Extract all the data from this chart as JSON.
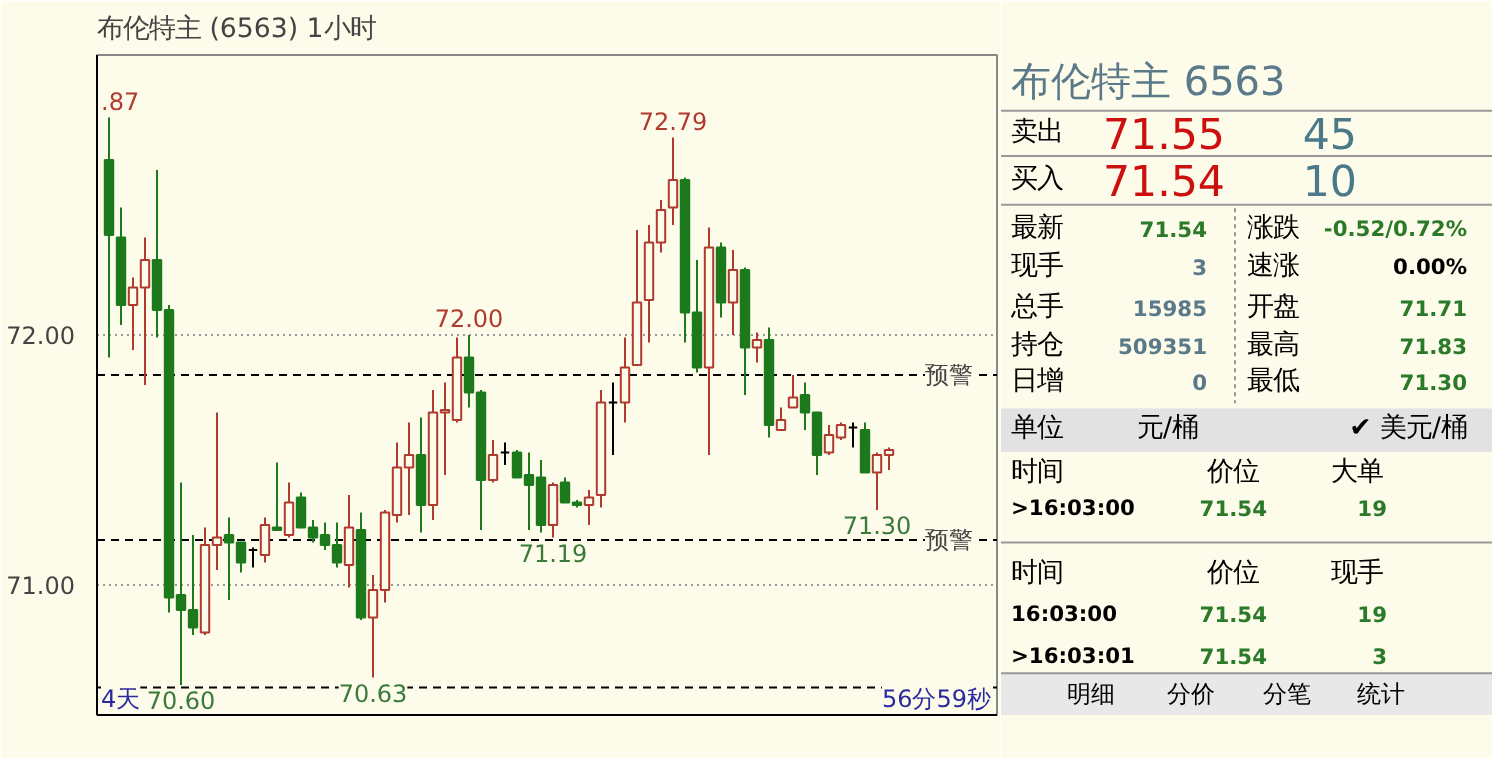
{
  "chart_data": [
    {
      "type": "candlestick",
      "title": "布伦特主 (6563)  1小时",
      "categories": [
        null,
        null,
        null,
        null,
        null,
        null,
        null,
        null,
        null,
        null,
        null,
        null,
        null,
        null,
        null,
        null,
        null,
        null,
        null,
        null,
        null,
        null,
        null,
        null,
        null,
        null,
        null,
        null,
        null,
        null,
        null,
        null,
        null,
        null,
        null,
        null,
        null,
        null,
        null,
        null,
        null,
        null,
        null,
        null,
        null,
        null,
        null,
        null,
        null,
        null,
        null,
        null,
        null,
        null,
        null,
        null,
        null,
        null,
        null,
        null,
        null,
        null,
        null,
        null,
        null,
        null
      ],
      "ohlc": [
        [
          72.7,
          72.87,
          71.91,
          72.4
        ],
        [
          72.39,
          72.51,
          72.04,
          72.12
        ],
        [
          72.12,
          72.23,
          71.94,
          72.19
        ],
        [
          72.19,
          72.39,
          71.8,
          72.3
        ],
        [
          72.3,
          72.66,
          71.99,
          72.1
        ],
        [
          72.1,
          72.12,
          70.89,
          70.95
        ],
        [
          70.96,
          71.41,
          70.6,
          70.9
        ],
        [
          70.9,
          71.2,
          70.8,
          70.83
        ],
        [
          70.81,
          71.23,
          70.8,
          71.16
        ],
        [
          71.16,
          71.69,
          71.06,
          71.19
        ],
        [
          71.2,
          71.27,
          70.94,
          71.17
        ],
        [
          71.17,
          71.17,
          71.05,
          71.09
        ],
        [
          71.14,
          71.15,
          71.07,
          71.14
        ],
        [
          71.12,
          71.27,
          71.09,
          71.24
        ],
        [
          71.23,
          71.49,
          71.22,
          71.22
        ],
        [
          71.2,
          71.41,
          71.19,
          71.33
        ],
        [
          71.35,
          71.37,
          71.23,
          71.23
        ],
        [
          71.23,
          71.26,
          71.17,
          71.19
        ],
        [
          71.2,
          71.25,
          71.14,
          71.16
        ],
        [
          71.16,
          71.25,
          71.07,
          71.09
        ],
        [
          71.08,
          71.36,
          70.99,
          71.23
        ],
        [
          71.22,
          71.29,
          70.86,
          70.87
        ],
        [
          70.87,
          71.04,
          70.63,
          70.98
        ],
        [
          70.98,
          71.3,
          70.93,
          71.29
        ],
        [
          71.28,
          71.57,
          71.25,
          71.47
        ],
        [
          71.47,
          71.65,
          71.28,
          71.52
        ],
        [
          71.52,
          71.67,
          71.21,
          71.32
        ],
        [
          71.32,
          71.78,
          71.26,
          71.69
        ],
        [
          71.69,
          71.81,
          71.44,
          71.7
        ],
        [
          71.66,
          71.99,
          71.65,
          71.91
        ],
        [
          71.91,
          72.0,
          71.71,
          71.77
        ],
        [
          71.77,
          71.78,
          71.22,
          71.42
        ],
        [
          71.42,
          71.58,
          71.41,
          71.52
        ],
        [
          71.53,
          71.57,
          71.48,
          71.53
        ],
        [
          71.53,
          71.54,
          71.43,
          71.43
        ],
        [
          71.44,
          71.53,
          71.22,
          71.4
        ],
        [
          71.43,
          71.5,
          71.21,
          71.24
        ],
        [
          71.24,
          71.41,
          71.19,
          71.4
        ],
        [
          71.41,
          71.43,
          71.33,
          71.33
        ],
        [
          71.33,
          71.34,
          71.31,
          71.32
        ],
        [
          71.32,
          71.38,
          71.24,
          71.35
        ],
        [
          71.36,
          71.78,
          71.31,
          71.73
        ],
        [
          71.73,
          71.81,
          71.52,
          71.73
        ],
        [
          71.73,
          71.99,
          71.65,
          71.87
        ],
        [
          71.88,
          72.42,
          71.88,
          72.13
        ],
        [
          72.14,
          72.44,
          71.97,
          72.37
        ],
        [
          72.37,
          72.54,
          72.33,
          72.5
        ],
        [
          72.51,
          72.79,
          72.44,
          72.62
        ],
        [
          72.62,
          72.63,
          71.97,
          72.09
        ],
        [
          72.09,
          72.3,
          71.85,
          71.87
        ],
        [
          71.87,
          72.43,
          71.52,
          72.35
        ],
        [
          72.35,
          72.37,
          72.07,
          72.13
        ],
        [
          72.13,
          72.34,
          72.0,
          72.26
        ],
        [
          72.26,
          72.27,
          71.76,
          71.95
        ],
        [
          71.95,
          72.01,
          71.89,
          71.98
        ],
        [
          71.98,
          72.03,
          71.59,
          71.64
        ],
        [
          71.62,
          71.71,
          71.62,
          71.66
        ],
        [
          71.71,
          71.84,
          71.71,
          71.75
        ],
        [
          71.76,
          71.81,
          71.62,
          71.69
        ],
        [
          71.69,
          71.69,
          71.44,
          71.52
        ],
        [
          71.53,
          71.64,
          71.52,
          71.6
        ],
        [
          71.59,
          71.65,
          71.58,
          71.64
        ],
        [
          71.63,
          71.65,
          71.55,
          71.63
        ],
        [
          71.62,
          71.65,
          71.45,
          71.45
        ],
        [
          71.45,
          71.53,
          71.3,
          71.52
        ],
        [
          71.52,
          71.55,
          71.46,
          71.54
        ]
      ],
      "ylim": [
        70.48,
        73.12
      ],
      "yticks": [
        {
          "value": 71,
          "label": "71.00"
        },
        {
          "value": 72,
          "label": "72.00"
        }
      ],
      "grid": "y",
      "tick_labels": "y",
      "ref_lines": [
        {
          "axis": "y",
          "value": 71.84,
          "label": "预警",
          "line_style": "dashed"
        },
        {
          "axis": "y",
          "value": 71.18,
          "label": "预警",
          "line_style": "dashed"
        },
        {
          "axis": "y",
          "value": 70.59,
          "label": null,
          "line_style": "dashed"
        }
      ],
      "annotations": [
        ".87",
        {
          "text": "72.00",
          "y": 72.0
        },
        {
          "text": "72.79",
          "y": 72.79
        },
        {
          "text": "71.19",
          "y": 71.19
        },
        {
          "text": "71.30",
          "y": 71.3
        },
        {
          "text": "70.60",
          "y": 70.6
        },
        {
          "text": "70.63",
          "y": 70.63
        },
        "4天",
        "56分59秒"
      ]
    },
    {
      "type": "other",
      "title": "布伦特主 6563",
      "annotations": [
        "卖出",
        "71.55",
        "45",
        "买入",
        "71.54",
        "10",
        "最新",
        "71.54",
        "涨跌",
        "-0.52/0.72%",
        "现手",
        "3",
        "速涨",
        "0.00%",
        "总手",
        "15985",
        "开盘",
        "71.71",
        "持仓",
        "509351",
        "最高",
        "71.83",
        "日增",
        "0",
        "最低",
        "71.30",
        "单位",
        "元/桶",
        "✔ 美元/桶",
        "时间",
        "价位",
        "大单",
        ">16:03:00",
        "71.54",
        "19",
        "时间",
        "价位",
        "现手",
        "16:03:00",
        "71.54",
        "19",
        ">16:03:01",
        "71.54",
        "3",
        "明细",
        "分价",
        "分笔",
        "统计"
      ]
    }
  ]
}
